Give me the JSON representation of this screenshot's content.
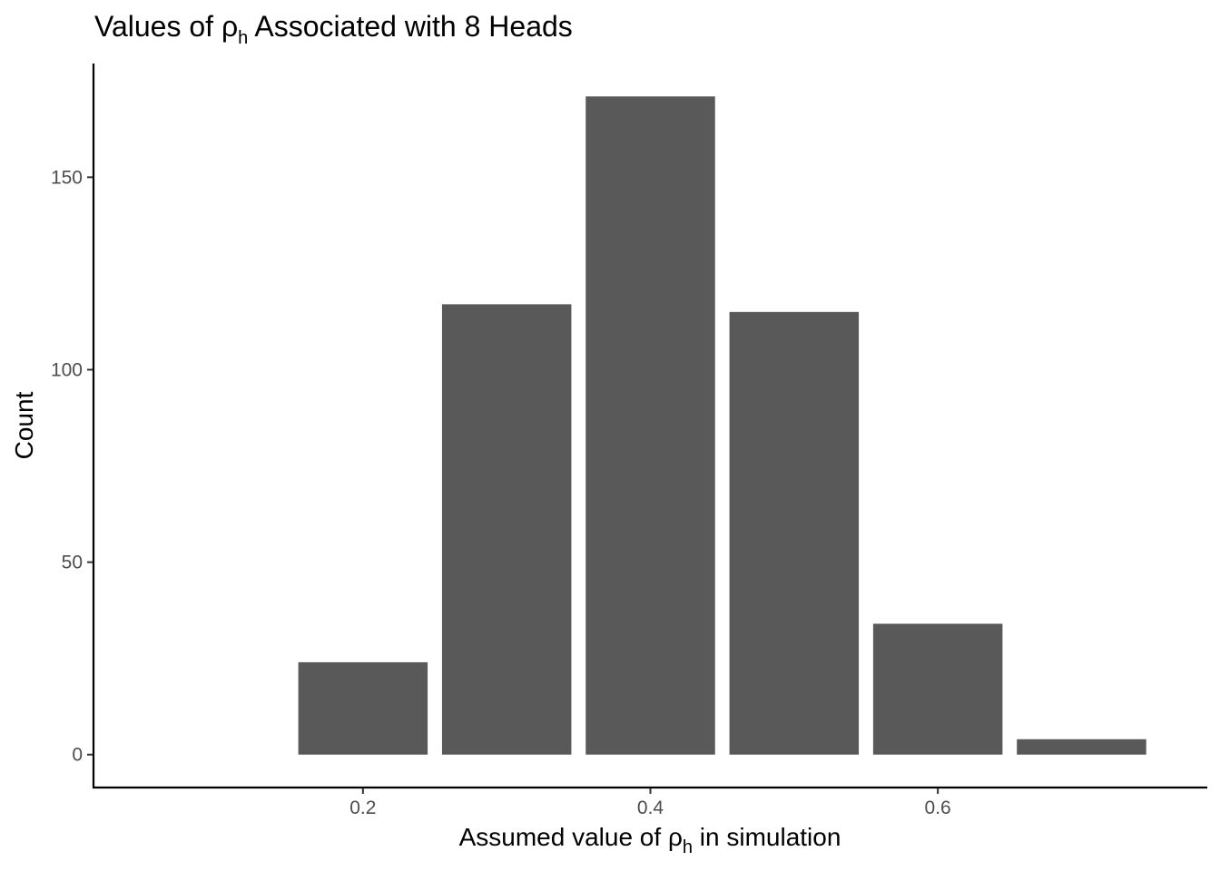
{
  "chart_data": {
    "type": "bar",
    "title": {
      "prefix": "Values of ρ",
      "subscript": "h",
      "suffix": " Associated with 8 Heads"
    },
    "xlabel": {
      "prefix": "Assumed value of ρ",
      "subscript": "h",
      "suffix": " in simulation"
    },
    "ylabel": "Count",
    "x": [
      0.2,
      0.3,
      0.4,
      0.5,
      0.6,
      0.7
    ],
    "values": [
      24,
      117,
      171,
      115,
      34,
      4
    ],
    "bar_width": 0.09,
    "xlim": [
      0.0125,
      0.7875
    ],
    "ylim": [
      -8.55,
      179.55
    ],
    "x_ticks": [
      0.2,
      0.4,
      0.6
    ],
    "x_tick_labels": [
      "0.2",
      "0.4",
      "0.6"
    ],
    "y_ticks": [
      0,
      50,
      100,
      150
    ],
    "y_tick_labels": [
      "0",
      "50",
      "100",
      "150"
    ],
    "bar_color": "#595959",
    "grid": false
  }
}
